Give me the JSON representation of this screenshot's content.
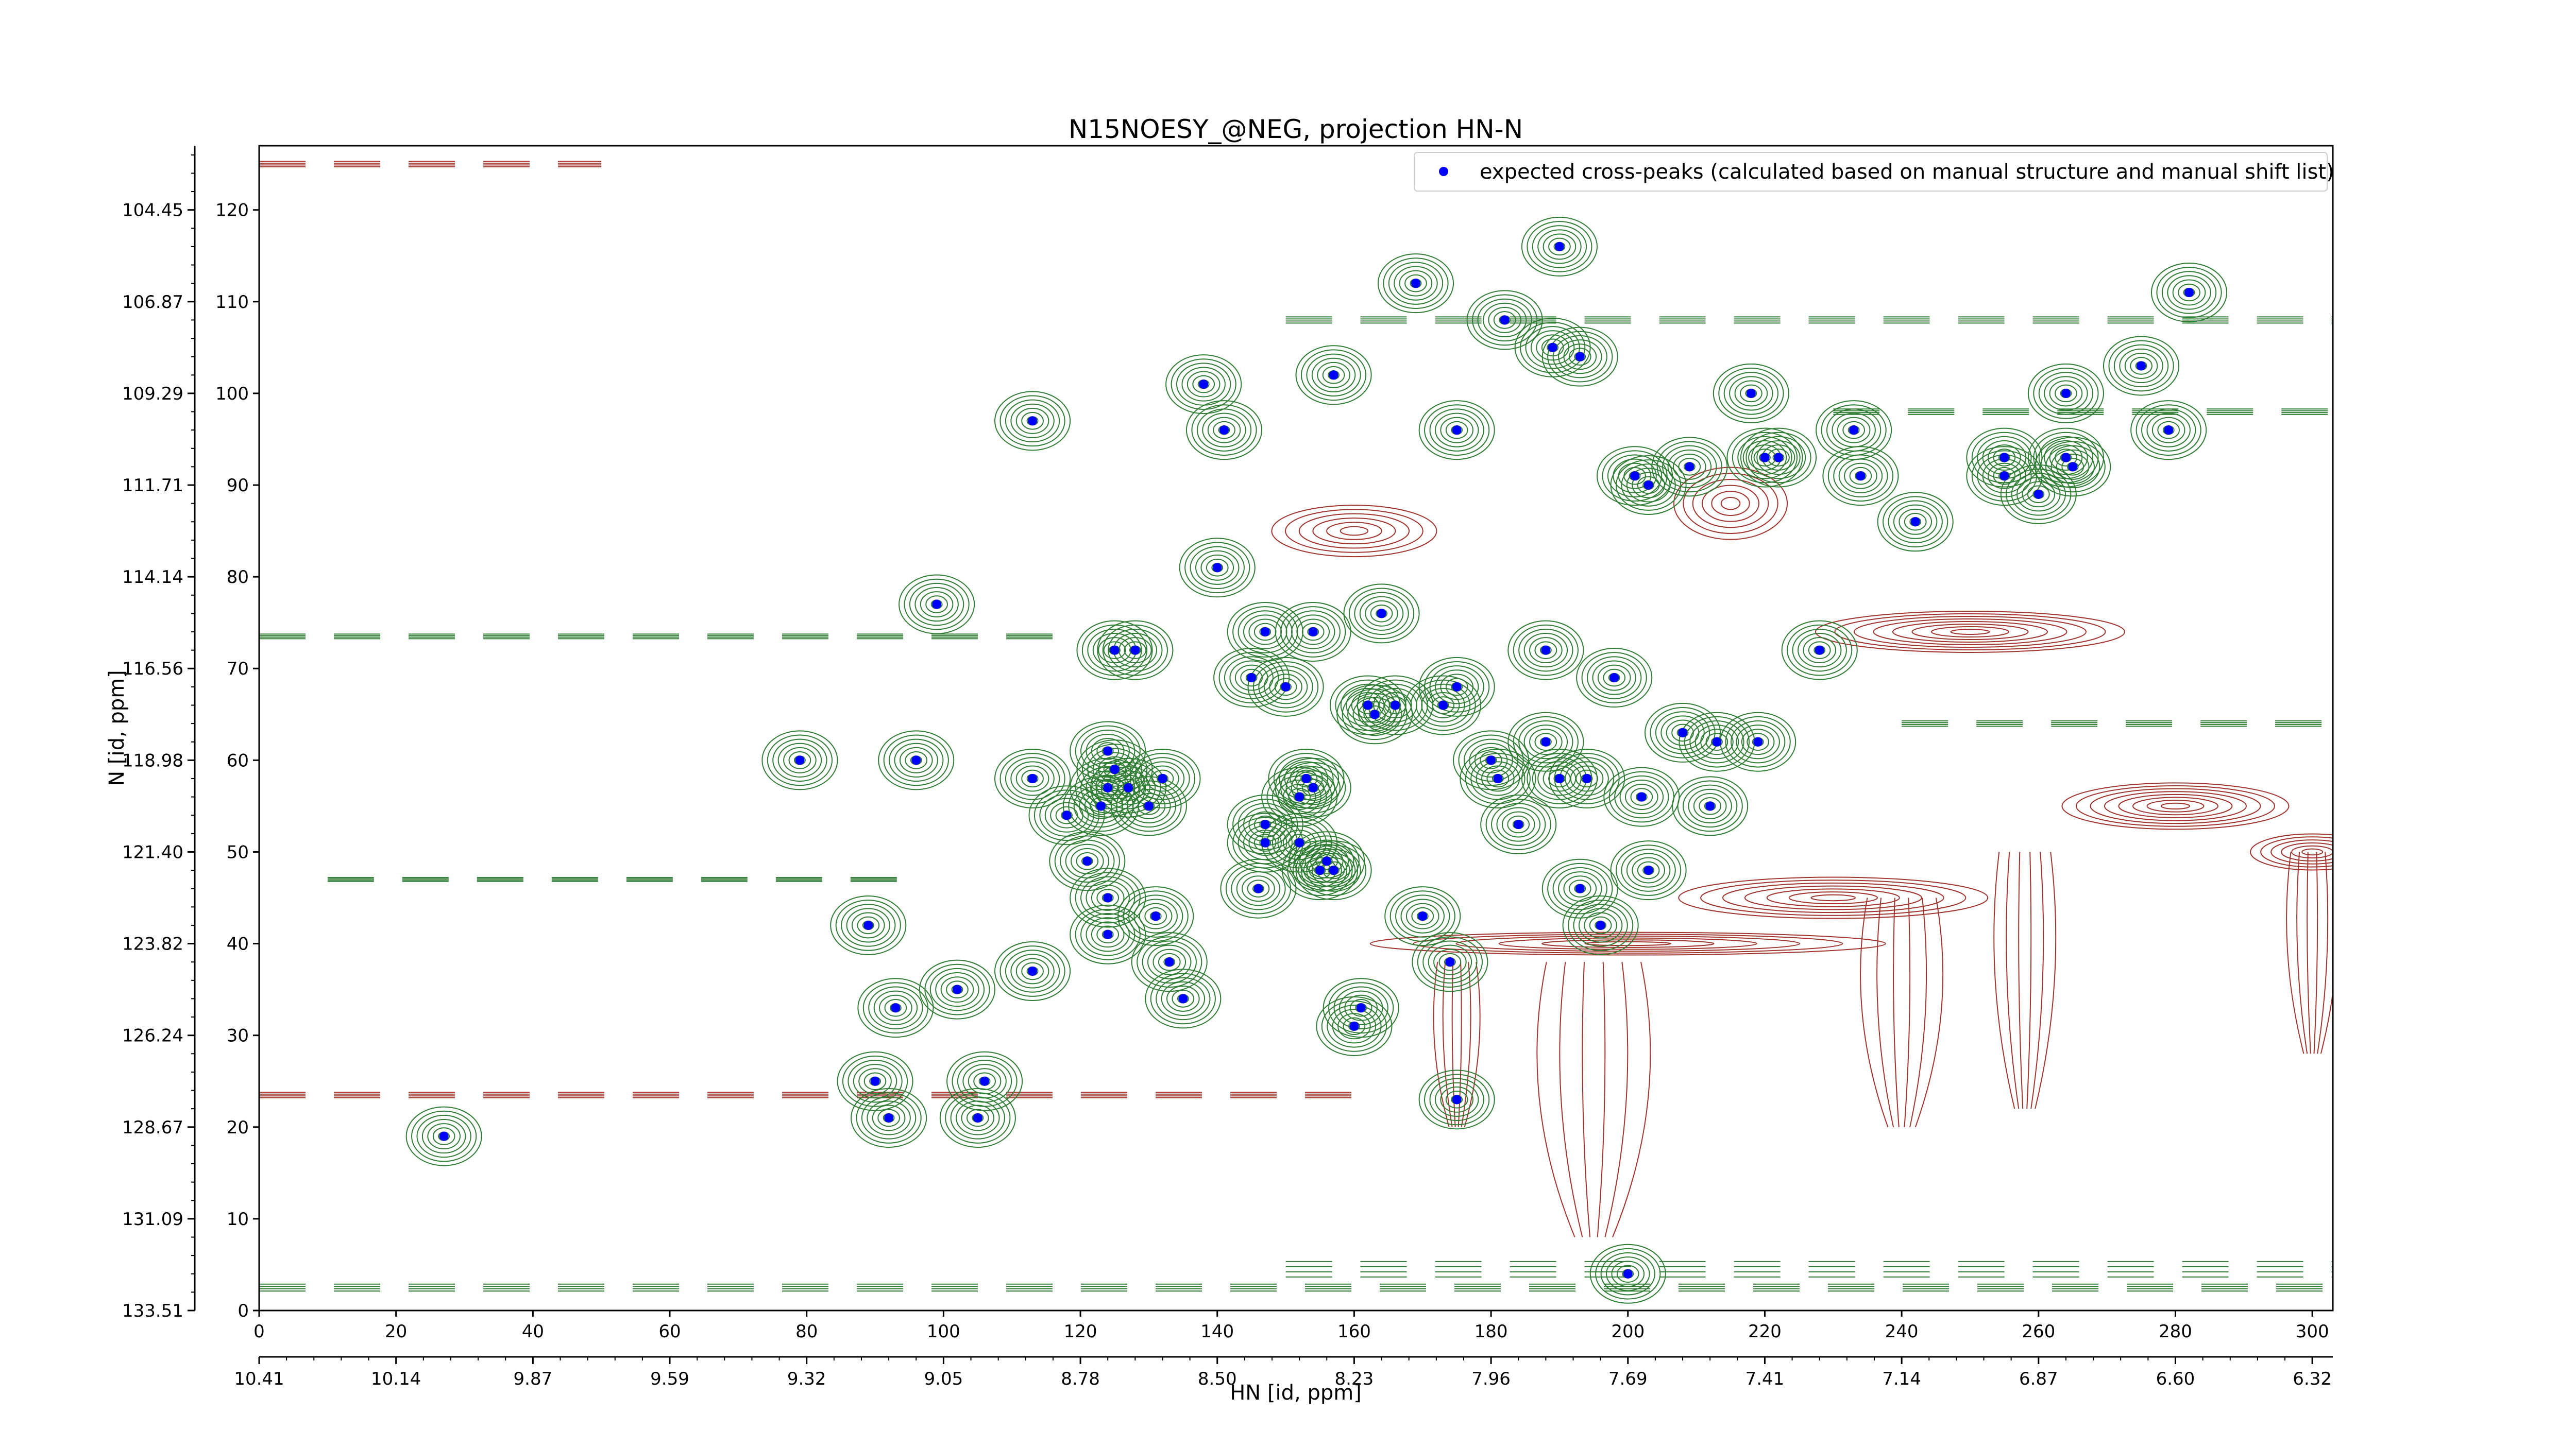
{
  "chart_data": {
    "type": "scatter",
    "title": "N15NOESY_@NEG, projection HN-N",
    "xlabel": "HN [id, ppm]",
    "ylabel": "N [id, ppm]",
    "xlim": [
      0,
      303
    ],
    "ylim": [
      0,
      127
    ],
    "x_index_ticks": [
      0,
      20,
      40,
      60,
      80,
      100,
      120,
      140,
      160,
      180,
      200,
      220,
      240,
      260,
      280,
      300
    ],
    "x_ppm_ticks": [
      "10.41",
      "10.14",
      "9.87",
      "9.59",
      "9.32",
      "9.05",
      "8.78",
      "8.50",
      "8.23",
      "7.96",
      "7.69",
      "7.41",
      "7.14",
      "6.87",
      "6.60",
      "6.32"
    ],
    "y_index_ticks": [
      0,
      10,
      20,
      30,
      40,
      50,
      60,
      70,
      80,
      90,
      100,
      110,
      120
    ],
    "y_ppm_ticks": [
      "133.51",
      "131.09",
      "128.67",
      "126.24",
      "123.82",
      "121.40",
      "118.98",
      "116.56",
      "114.14",
      "111.71",
      "109.29",
      "106.87",
      "104.45"
    ],
    "legend": {
      "placement": "top-right",
      "entries": [
        "expected cross-peaks (calculated based on manual structure and manual shift list)"
      ]
    },
    "colors": {
      "positive_contours": "#2e7d32",
      "negative_contours": "#a0332b",
      "markers": "#0000ff"
    },
    "series": [
      {
        "name": "expected cross-peaks (calculated based on manual structure and manual shift list)",
        "points": [
          [
            27,
            19
          ],
          [
            79,
            60
          ],
          [
            89,
            42
          ],
          [
            92,
            21
          ],
          [
            90,
            25
          ],
          [
            93,
            33
          ],
          [
            96,
            60
          ],
          [
            99,
            77
          ],
          [
            102,
            35
          ],
          [
            106,
            25
          ],
          [
            105,
            21
          ],
          [
            113,
            37
          ],
          [
            113,
            58
          ],
          [
            113,
            97
          ],
          [
            118,
            54
          ],
          [
            121,
            49
          ],
          [
            123,
            55
          ],
          [
            124,
            61
          ],
          [
            124,
            45
          ],
          [
            124,
            41
          ],
          [
            124,
            57
          ],
          [
            125,
            59
          ],
          [
            125,
            72
          ],
          [
            127,
            57
          ],
          [
            128,
            72
          ],
          [
            130,
            55
          ],
          [
            131,
            43
          ],
          [
            132,
            58
          ],
          [
            133,
            38
          ],
          [
            135,
            34
          ],
          [
            138,
            101
          ],
          [
            140,
            81
          ],
          [
            141,
            96
          ],
          [
            145,
            69
          ],
          [
            146,
            46
          ],
          [
            147,
            53
          ],
          [
            147,
            51
          ],
          [
            147,
            74
          ],
          [
            150,
            68
          ],
          [
            152,
            51
          ],
          [
            152,
            56
          ],
          [
            153,
            58
          ],
          [
            154,
            57
          ],
          [
            154,
            74
          ],
          [
            155,
            48
          ],
          [
            156,
            49
          ],
          [
            157,
            48
          ],
          [
            157,
            102
          ],
          [
            160,
            31
          ],
          [
            161,
            33
          ],
          [
            162,
            66
          ],
          [
            163,
            65
          ],
          [
            164,
            76
          ],
          [
            166,
            66
          ],
          [
            169,
            112
          ],
          [
            170,
            43
          ],
          [
            173,
            66
          ],
          [
            174,
            38
          ],
          [
            175,
            23
          ],
          [
            175,
            96
          ],
          [
            175,
            68
          ],
          [
            180,
            60
          ],
          [
            181,
            58
          ],
          [
            182,
            108
          ],
          [
            184,
            53
          ],
          [
            188,
            62
          ],
          [
            188,
            72
          ],
          [
            189,
            105
          ],
          [
            190,
            116
          ],
          [
            190,
            58
          ],
          [
            193,
            46
          ],
          [
            193,
            104
          ],
          [
            194,
            58
          ],
          [
            196,
            42
          ],
          [
            198,
            69
          ],
          [
            200,
            4
          ],
          [
            201,
            91
          ],
          [
            202,
            56
          ],
          [
            203,
            48
          ],
          [
            203,
            90
          ],
          [
            208,
            63
          ],
          [
            209,
            92
          ],
          [
            212,
            55
          ],
          [
            213,
            62
          ],
          [
            218,
            100
          ],
          [
            219,
            62
          ],
          [
            220,
            93
          ],
          [
            222,
            93
          ],
          [
            228,
            72
          ],
          [
            233,
            96
          ],
          [
            234,
            91
          ],
          [
            242,
            86
          ],
          [
            255,
            93
          ],
          [
            255,
            91
          ],
          [
            260,
            89
          ],
          [
            264,
            100
          ],
          [
            264,
            93
          ],
          [
            265,
            92
          ],
          [
            275,
            103
          ],
          [
            279,
            96
          ],
          [
            282,
            111
          ]
        ]
      }
    ]
  }
}
